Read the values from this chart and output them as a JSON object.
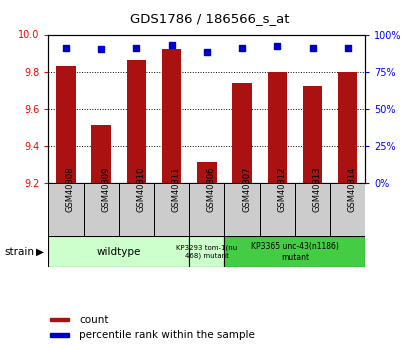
{
  "title": "GDS1786 / 186566_s_at",
  "samples": [
    "GSM40308",
    "GSM40309",
    "GSM40310",
    "GSM40311",
    "GSM40306",
    "GSM40307",
    "GSM40312",
    "GSM40313",
    "GSM40314"
  ],
  "counts": [
    9.83,
    9.51,
    9.86,
    9.92,
    9.31,
    9.74,
    9.8,
    9.72,
    9.8
  ],
  "percentiles": [
    91,
    90,
    91,
    93,
    88,
    91,
    92,
    91,
    91
  ],
  "ymin": 9.2,
  "ymax": 10.0,
  "yticks": [
    9.2,
    9.4,
    9.6,
    9.8,
    10.0
  ],
  "y2min": 0,
  "y2max": 100,
  "y2ticks": [
    0,
    25,
    50,
    75,
    100
  ],
  "y2labels": [
    "0%",
    "25%",
    "50%",
    "75%",
    "100%"
  ],
  "bar_color": "#aa1111",
  "dot_color": "#0000cc",
  "bar_width": 0.55,
  "wt_color": "#ccffcc",
  "mut1_color": "#ccffcc",
  "mut2_color": "#44cc44",
  "tick_bg": "#cccccc",
  "group1_label": "wildtype",
  "group2_label": "KP3293 tom-1(nu\n468) mutant",
  "group3_label": "KP3365 unc-43(n1186)\nmutant",
  "legend_label1": "count",
  "legend_label2": "percentile rank within the sample",
  "strain_label": "strain"
}
